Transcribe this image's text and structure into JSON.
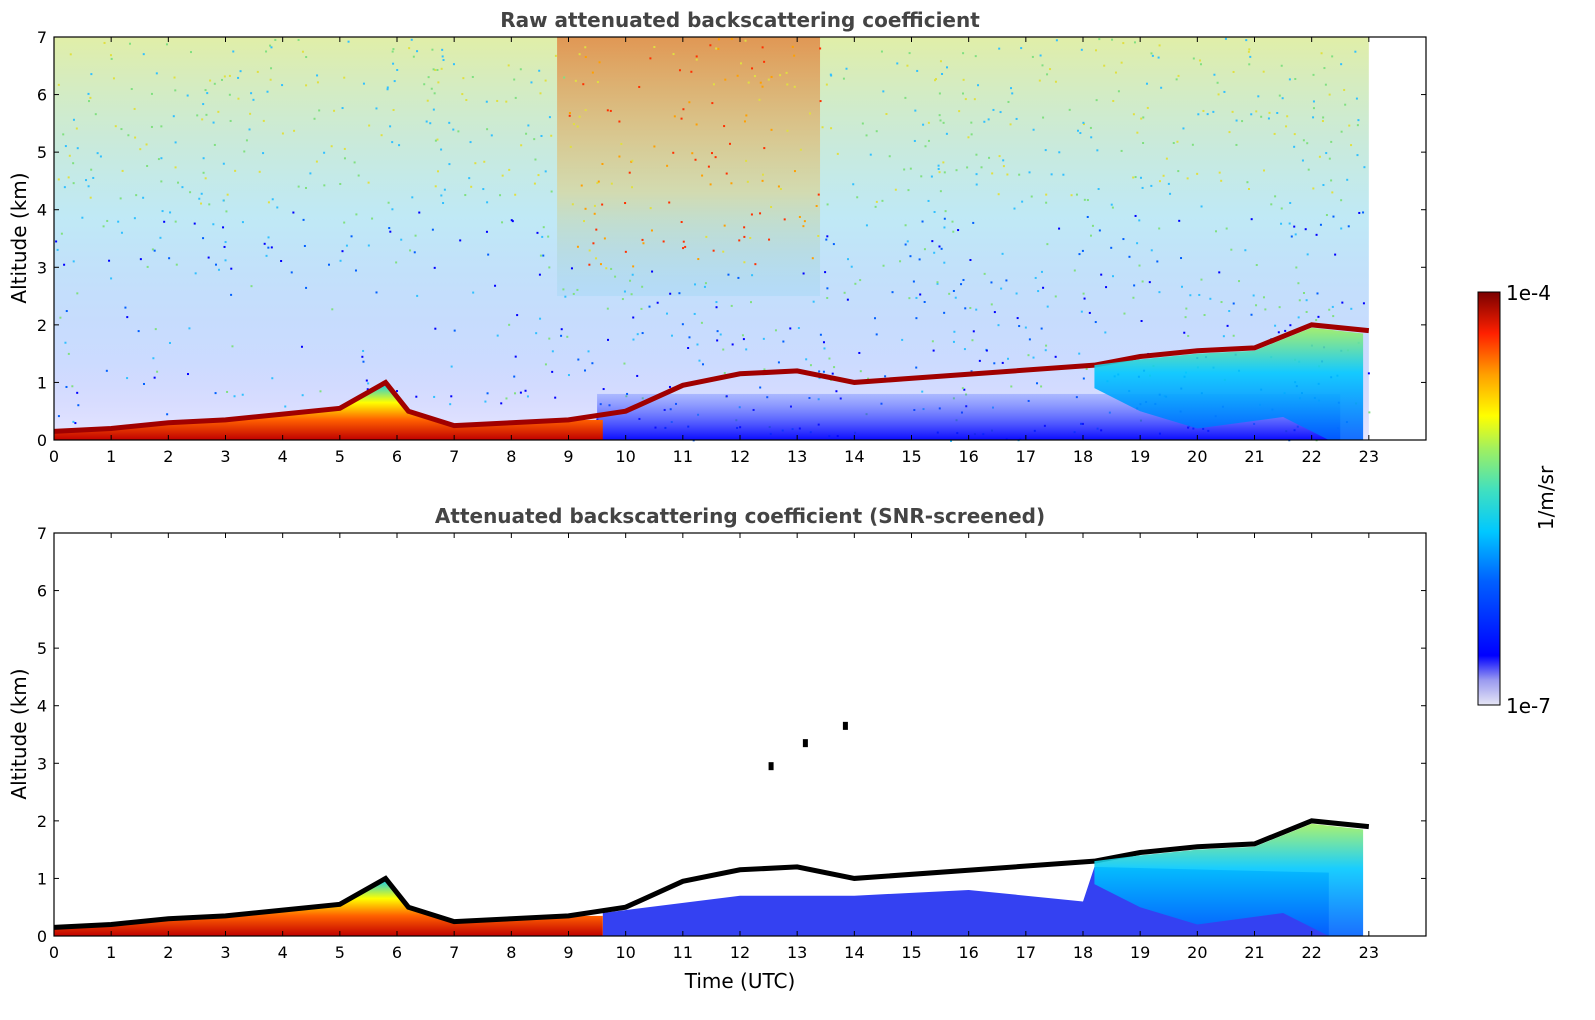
{
  "chart_data": [
    {
      "type": "heatmap",
      "title": "Raw attenuated backscattering coefficient",
      "xlabel": "",
      "ylabel": "Altitude (km)",
      "xlim": [
        0,
        24
      ],
      "ylim": [
        0,
        7
      ],
      "xticks": [
        "0",
        "1",
        "2",
        "3",
        "4",
        "5",
        "6",
        "7",
        "8",
        "9",
        "10",
        "11",
        "12",
        "13",
        "14",
        "15",
        "16",
        "17",
        "18",
        "19",
        "20",
        "21",
        "22",
        "23"
      ],
      "yticks": [
        "0",
        "1",
        "2",
        "3",
        "4",
        "5",
        "6",
        "7"
      ],
      "data_end_hour": 23,
      "layer_top_km": [
        [
          0,
          0.15
        ],
        [
          1,
          0.2
        ],
        [
          2,
          0.3
        ],
        [
          3,
          0.35
        ],
        [
          4,
          0.45
        ],
        [
          5,
          0.55
        ],
        [
          5.8,
          1.0
        ],
        [
          6.2,
          0.5
        ],
        [
          7,
          0.25
        ],
        [
          8,
          0.3
        ],
        [
          9,
          0.35
        ],
        [
          10,
          0.5
        ],
        [
          11,
          0.95
        ],
        [
          12,
          1.15
        ],
        [
          13,
          1.2
        ],
        [
          14,
          1.0
        ],
        [
          18.2,
          1.3
        ],
        [
          19,
          1.45
        ],
        [
          20,
          1.55
        ],
        [
          21,
          1.6
        ],
        [
          22,
          2.0
        ],
        [
          23,
          1.9
        ]
      ],
      "noise_upper_description_levels": "high values above ~3 km between 9 and 13.5 h"
    },
    {
      "type": "heatmap",
      "title": "Attenuated backscattering coefficient (SNR-screened)",
      "xlabel": "Time (UTC)",
      "ylabel": "Altitude (km)",
      "xlim": [
        0,
        24
      ],
      "ylim": [
        0,
        7
      ],
      "xticks": [
        "0",
        "1",
        "2",
        "3",
        "4",
        "5",
        "6",
        "7",
        "8",
        "9",
        "10",
        "11",
        "12",
        "13",
        "14",
        "15",
        "16",
        "17",
        "18",
        "19",
        "20",
        "21",
        "22",
        "23"
      ],
      "yticks": [
        "0",
        "1",
        "2",
        "3",
        "4",
        "5",
        "6",
        "7"
      ],
      "data_end_hour": 23,
      "isolated_points": [
        [
          12.5,
          2.95
        ],
        [
          13.1,
          3.35
        ],
        [
          13.8,
          3.65
        ]
      ]
    }
  ],
  "colorbar": {
    "label": "1/m/sr",
    "max_label": "1e-4",
    "min_label": "1e-7",
    "scale": "log",
    "colormap": [
      "#e6e6f5",
      "#b0b0ee",
      "#0000ff",
      "#0060ff",
      "#00c8ff",
      "#40e0c0",
      "#a0f060",
      "#ffff00",
      "#ffa000",
      "#ff2000",
      "#b00000",
      "#7a0000"
    ]
  }
}
